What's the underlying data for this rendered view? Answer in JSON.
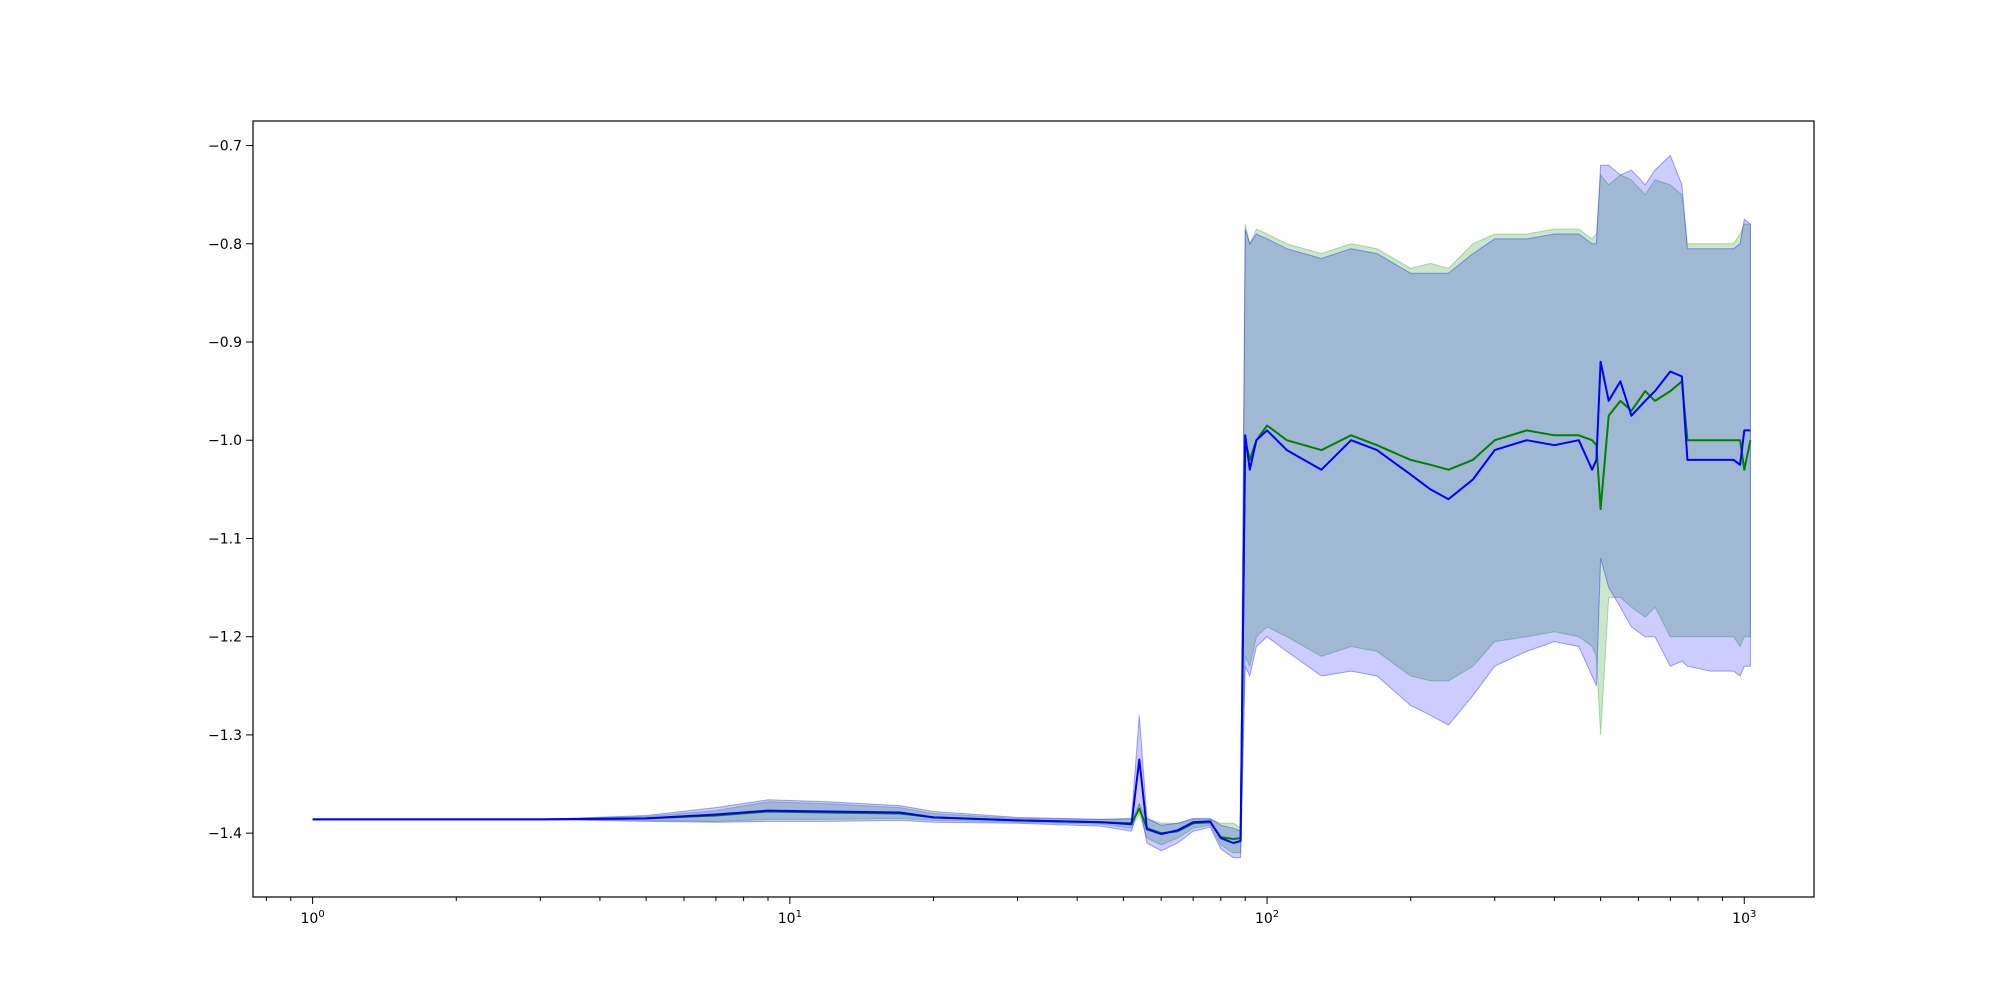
{
  "chart_data": {
    "type": "line",
    "title": "",
    "xlabel": "",
    "ylabel": "",
    "x_scale": "log",
    "xlim": [
      0.75,
      1400
    ],
    "ylim": [
      -1.465,
      -0.675
    ],
    "grid": false,
    "legend": null,
    "x_ticks": [
      {
        "value": 1,
        "base": "10",
        "exp": "0"
      },
      {
        "value": 10,
        "base": "10",
        "exp": "1"
      },
      {
        "value": 100,
        "base": "10",
        "exp": "2"
      },
      {
        "value": 1000,
        "base": "10",
        "exp": "3"
      }
    ],
    "y_ticks": [
      {
        "value": -0.7,
        "label": "−0.7"
      },
      {
        "value": -0.8,
        "label": "−0.8"
      },
      {
        "value": -0.9,
        "label": "−0.9"
      },
      {
        "value": -1.0,
        "label": "−1.0"
      },
      {
        "value": -1.1,
        "label": "−1.1"
      },
      {
        "value": -1.2,
        "label": "−1.2"
      },
      {
        "value": -1.3,
        "label": "−1.3"
      },
      {
        "value": -1.4,
        "label": "−1.4"
      }
    ],
    "series": [
      {
        "color": "#008000",
        "band_color": "#2ca02c",
        "band_opacity": 0.25,
        "x": [
          1,
          3,
          5,
          7,
          9,
          12,
          17,
          20,
          30,
          45,
          52,
          54,
          56,
          60,
          65,
          70,
          76,
          80,
          85,
          88,
          90,
          92,
          95,
          100,
          110,
          130,
          150,
          170,
          200,
          220,
          240,
          270,
          300,
          350,
          400,
          450,
          480,
          490,
          500,
          520,
          550,
          580,
          620,
          650,
          700,
          740,
          760,
          850,
          950,
          980,
          1000,
          1030
        ],
        "y": [
          -1.386,
          -1.386,
          -1.385,
          -1.382,
          -1.378,
          -1.379,
          -1.38,
          -1.384,
          -1.387,
          -1.389,
          -1.39,
          -1.375,
          -1.395,
          -1.4,
          -1.398,
          -1.39,
          -1.389,
          -1.404,
          -1.406,
          -1.405,
          -1.0,
          -1.02,
          -1.0,
          -0.985,
          -1.0,
          -1.01,
          -0.995,
          -1.005,
          -1.02,
          -1.025,
          -1.03,
          -1.02,
          -1.0,
          -0.99,
          -0.995,
          -0.995,
          -1.0,
          -1.005,
          -1.07,
          -0.975,
          -0.96,
          -0.97,
          -0.95,
          -0.96,
          -0.95,
          -0.94,
          -1.0,
          -1.0,
          -1.0,
          -1.0,
          -1.03,
          -1.0
        ],
        "upper": [
          -1.386,
          -1.386,
          -1.383,
          -1.377,
          -1.368,
          -1.37,
          -1.374,
          -1.38,
          -1.385,
          -1.386,
          -1.386,
          -1.37,
          -1.385,
          -1.39,
          -1.39,
          -1.386,
          -1.386,
          -1.39,
          -1.39,
          -1.395,
          -0.78,
          -0.8,
          -0.785,
          -0.79,
          -0.8,
          -0.81,
          -0.8,
          -0.805,
          -0.825,
          -0.82,
          -0.825,
          -0.8,
          -0.79,
          -0.79,
          -0.785,
          -0.785,
          -0.795,
          -0.79,
          -0.73,
          -0.74,
          -0.73,
          -0.735,
          -0.75,
          -0.735,
          -0.74,
          -0.75,
          -0.8,
          -0.8,
          -0.8,
          -0.79,
          -0.78,
          -0.78
        ],
        "lower": [
          -1.386,
          -1.386,
          -1.387,
          -1.388,
          -1.386,
          -1.386,
          -1.385,
          -1.387,
          -1.389,
          -1.391,
          -1.395,
          -1.38,
          -1.405,
          -1.412,
          -1.405,
          -1.395,
          -1.392,
          -1.412,
          -1.42,
          -1.42,
          -1.22,
          -1.23,
          -1.2,
          -1.19,
          -1.2,
          -1.22,
          -1.21,
          -1.215,
          -1.24,
          -1.245,
          -1.245,
          -1.23,
          -1.205,
          -1.2,
          -1.195,
          -1.2,
          -1.21,
          -1.22,
          -1.3,
          -1.16,
          -1.16,
          -1.17,
          -1.18,
          -1.17,
          -1.2,
          -1.2,
          -1.2,
          -1.2,
          -1.2,
          -1.21,
          -1.2,
          -1.2
        ]
      },
      {
        "color": "#0000ff",
        "band_color": "#0000ff",
        "band_opacity": 0.2,
        "x": [
          1,
          3,
          5,
          7,
          9,
          12,
          17,
          20,
          30,
          45,
          52,
          54,
          56,
          60,
          65,
          70,
          76,
          80,
          85,
          88,
          90,
          92,
          95,
          100,
          110,
          130,
          150,
          170,
          200,
          220,
          240,
          270,
          300,
          350,
          400,
          450,
          480,
          490,
          500,
          520,
          550,
          580,
          620,
          650,
          700,
          740,
          760,
          850,
          950,
          980,
          1000,
          1030
        ],
        "y": [
          -1.386,
          -1.386,
          -1.385,
          -1.381,
          -1.377,
          -1.378,
          -1.379,
          -1.384,
          -1.387,
          -1.389,
          -1.391,
          -1.325,
          -1.396,
          -1.401,
          -1.397,
          -1.389,
          -1.388,
          -1.405,
          -1.41,
          -1.408,
          -0.995,
          -1.03,
          -1.0,
          -0.99,
          -1.01,
          -1.03,
          -1.0,
          -1.01,
          -1.035,
          -1.05,
          -1.06,
          -1.04,
          -1.01,
          -1.0,
          -1.005,
          -1.0,
          -1.03,
          -1.02,
          -0.92,
          -0.96,
          -0.94,
          -0.975,
          -0.96,
          -0.95,
          -0.93,
          -0.935,
          -1.02,
          -1.02,
          -1.02,
          -1.025,
          -0.99,
          -0.99
        ],
        "upper": [
          -1.386,
          -1.386,
          -1.382,
          -1.374,
          -1.366,
          -1.368,
          -1.372,
          -1.378,
          -1.384,
          -1.386,
          -1.385,
          -1.28,
          -1.385,
          -1.392,
          -1.39,
          -1.385,
          -1.385,
          -1.392,
          -1.395,
          -1.398,
          -0.785,
          -0.8,
          -0.79,
          -0.795,
          -0.805,
          -0.815,
          -0.805,
          -0.81,
          -0.83,
          -0.83,
          -0.83,
          -0.81,
          -0.795,
          -0.795,
          -0.79,
          -0.79,
          -0.8,
          -0.8,
          -0.72,
          -0.72,
          -0.73,
          -0.725,
          -0.74,
          -0.725,
          -0.71,
          -0.74,
          -0.805,
          -0.805,
          -0.805,
          -0.8,
          -0.775,
          -0.78
        ],
        "lower": [
          -1.386,
          -1.386,
          -1.388,
          -1.389,
          -1.388,
          -1.388,
          -1.387,
          -1.389,
          -1.39,
          -1.393,
          -1.398,
          -1.37,
          -1.41,
          -1.418,
          -1.41,
          -1.398,
          -1.394,
          -1.416,
          -1.425,
          -1.425,
          -1.23,
          -1.24,
          -1.21,
          -1.2,
          -1.215,
          -1.24,
          -1.235,
          -1.24,
          -1.27,
          -1.28,
          -1.29,
          -1.26,
          -1.23,
          -1.215,
          -1.205,
          -1.21,
          -1.24,
          -1.25,
          -1.12,
          -1.15,
          -1.17,
          -1.19,
          -1.2,
          -1.2,
          -1.23,
          -1.225,
          -1.23,
          -1.235,
          -1.235,
          -1.24,
          -1.23,
          -1.23
        ]
      }
    ]
  }
}
